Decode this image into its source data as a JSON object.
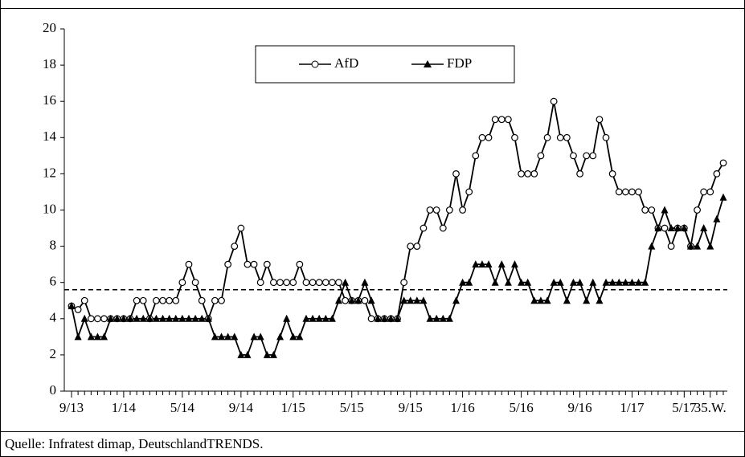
{
  "chart_data": {
    "type": "line",
    "source": "Quelle: Infratest dimap, DeutschlandTRENDS.",
    "categories": [
      "9/13",
      null,
      null,
      null,
      null,
      null,
      null,
      null,
      "1/14",
      null,
      null,
      null,
      null,
      null,
      null,
      null,
      null,
      "5/14",
      null,
      null,
      null,
      null,
      null,
      null,
      null,
      null,
      "9/14",
      null,
      null,
      null,
      null,
      null,
      null,
      null,
      "1/15",
      null,
      null,
      null,
      null,
      null,
      null,
      null,
      null,
      "5/15",
      null,
      null,
      null,
      null,
      null,
      null,
      null,
      null,
      "9/15",
      null,
      null,
      null,
      null,
      null,
      null,
      null,
      "1/16",
      null,
      null,
      null,
      null,
      null,
      null,
      null,
      null,
      "5/16",
      null,
      null,
      null,
      null,
      null,
      null,
      null,
      null,
      "9/16",
      null,
      null,
      null,
      null,
      null,
      null,
      null,
      "1/17",
      null,
      null,
      null,
      null,
      null,
      null,
      null,
      "5/17",
      null,
      null,
      null,
      "35.W.",
      null,
      null
    ],
    "series": [
      {
        "name": "AfD",
        "color": "#000000",
        "marker": "circle",
        "values": [
          4.7,
          4.5,
          5,
          4,
          4,
          4,
          4,
          4,
          4,
          4,
          5,
          5,
          4,
          5,
          5,
          5,
          5,
          6,
          7,
          6,
          5,
          4,
          5,
          5,
          7,
          8,
          9,
          7,
          7,
          6,
          7,
          6,
          6,
          6,
          6,
          7,
          6,
          6,
          6,
          6,
          6,
          6,
          5,
          5,
          5,
          5,
          4,
          4,
          4,
          4,
          4,
          6,
          8,
          8,
          9,
          10,
          10,
          9,
          10,
          12,
          10,
          11,
          13,
          14,
          14,
          15,
          15,
          15,
          14,
          12,
          12,
          12,
          13,
          14,
          16,
          14,
          14,
          13,
          12,
          13,
          13,
          15,
          14,
          12,
          11,
          11,
          11,
          11,
          10,
          10,
          9,
          9,
          8,
          9,
          9,
          8,
          10,
          11,
          11,
          12,
          12.6
        ]
      },
      {
        "name": "FDP",
        "color": "#000000",
        "marker": "triangle",
        "values": [
          4.7,
          3,
          4,
          3,
          3,
          3,
          4,
          4,
          4,
          4,
          4,
          4,
          4,
          4,
          4,
          4,
          4,
          4,
          4,
          4,
          4,
          4,
          3,
          3,
          3,
          3,
          2,
          2,
          3,
          3,
          2,
          2,
          3,
          4,
          3,
          3,
          4,
          4,
          4,
          4,
          4,
          5,
          6,
          5,
          5,
          6,
          5,
          4,
          4,
          4,
          4,
          5,
          5,
          5,
          5,
          4,
          4,
          4,
          4,
          5,
          6,
          6,
          7,
          7,
          7,
          6,
          7,
          6,
          7,
          6,
          6,
          5,
          5,
          5,
          6,
          6,
          5,
          6,
          6,
          5,
          6,
          5,
          6,
          6,
          6,
          6,
          6,
          6,
          6,
          8,
          9,
          10,
          9,
          9,
          9,
          8,
          8,
          9,
          8,
          9.5,
          10.7
        ]
      }
    ],
    "reference_line": 5.6,
    "ylim": [
      0,
      20
    ],
    "yticks": [
      0,
      2,
      4,
      6,
      8,
      10,
      12,
      14,
      16,
      18,
      20
    ],
    "legend": "top"
  }
}
